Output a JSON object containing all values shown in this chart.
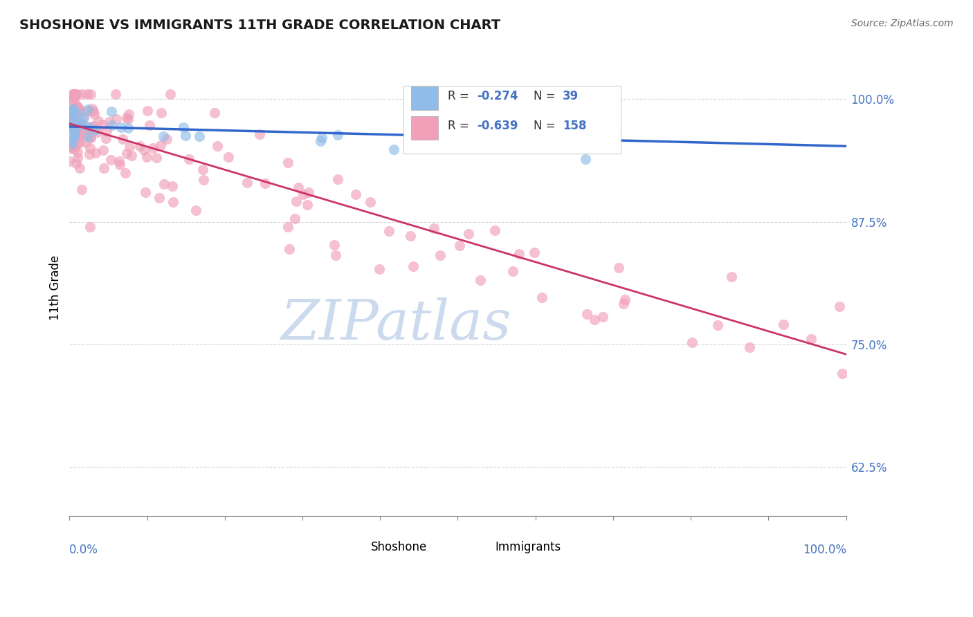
{
  "title": "SHOSHONE VS IMMIGRANTS 11TH GRADE CORRELATION CHART",
  "source_text": "Source: ZipAtlas.com",
  "ylabel": "11th Grade",
  "right_ytick_labels": [
    "62.5%",
    "75.0%",
    "87.5%",
    "100.0%"
  ],
  "right_ytick_values": [
    0.625,
    0.75,
    0.875,
    1.0
  ],
  "shoshone_color": "#90bce8",
  "immigrants_color": "#f0a0b8",
  "shoshone_line_color": "#3366cc",
  "immigrants_line_color": "#cc3366",
  "watermark_color": "#ccdaee",
  "xmin": 0.0,
  "xmax": 1.0,
  "ymin": 0.575,
  "ymax": 1.04,
  "sho_line_y0": 0.972,
  "sho_line_y1": 0.952,
  "imm_line_y0": 0.975,
  "imm_line_y1": 0.74,
  "title_fontsize": 14,
  "source_fontsize": 10,
  "legend_r_sho": "-0.274",
  "legend_n_sho": "39",
  "legend_r_imm": "-0.639",
  "legend_n_imm": "158",
  "axis_color": "#4472c4",
  "grid_color": "#cccccc",
  "marker_size": 120,
  "marker_alpha": 0.65
}
